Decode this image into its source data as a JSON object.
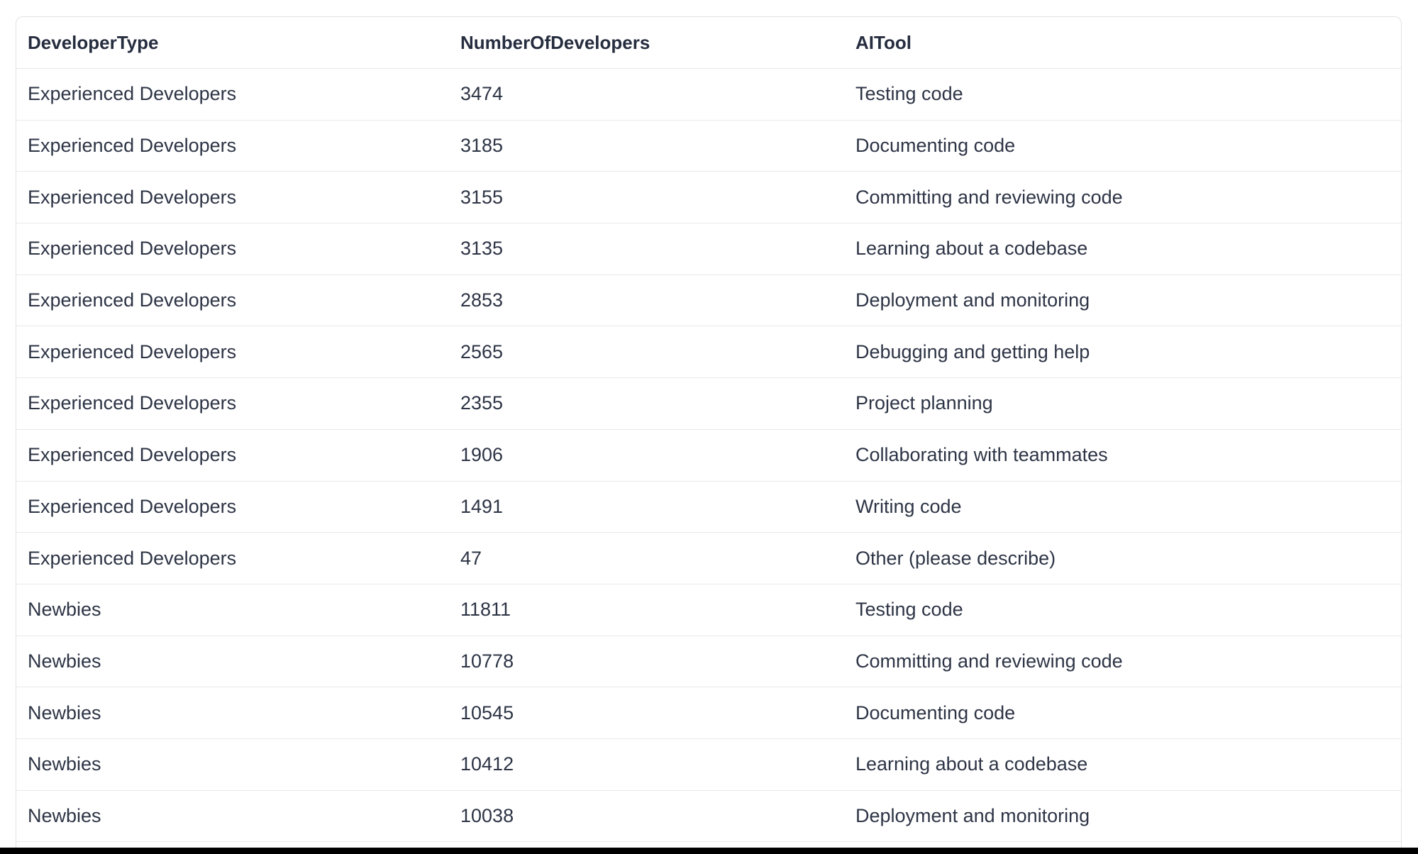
{
  "page": {
    "background_color": "#ffffff",
    "bottom_bar_color": "#000000",
    "card_border_color": "#e1e1e5",
    "divider_color": "#e9e9eb",
    "text_color": "#2d3445"
  },
  "table": {
    "columns": [
      "DeveloperType",
      "NumberOfDevelopers",
      "AITool"
    ],
    "rows": [
      [
        "Experienced Developers",
        "3474",
        "Testing code"
      ],
      [
        "Experienced Developers",
        "3185",
        "Documenting code"
      ],
      [
        "Experienced Developers",
        "3155",
        "Committing and reviewing code"
      ],
      [
        "Experienced Developers",
        "3135",
        "Learning about a codebase"
      ],
      [
        "Experienced Developers",
        "2853",
        "Deployment and monitoring"
      ],
      [
        "Experienced Developers",
        "2565",
        "Debugging and getting help"
      ],
      [
        "Experienced Developers",
        "2355",
        "Project planning"
      ],
      [
        "Experienced Developers",
        "1906",
        "Collaborating with teammates"
      ],
      [
        "Experienced Developers",
        "1491",
        "Writing code"
      ],
      [
        "Experienced Developers",
        "47",
        "Other (please describe)"
      ],
      [
        "Newbies",
        "11811",
        "Testing code"
      ],
      [
        "Newbies",
        "10778",
        "Committing and reviewing code"
      ],
      [
        "Newbies",
        "10545",
        "Documenting code"
      ],
      [
        "Newbies",
        "10412",
        "Learning about a codebase"
      ],
      [
        "Newbies",
        "10038",
        "Deployment and monitoring"
      ]
    ]
  }
}
